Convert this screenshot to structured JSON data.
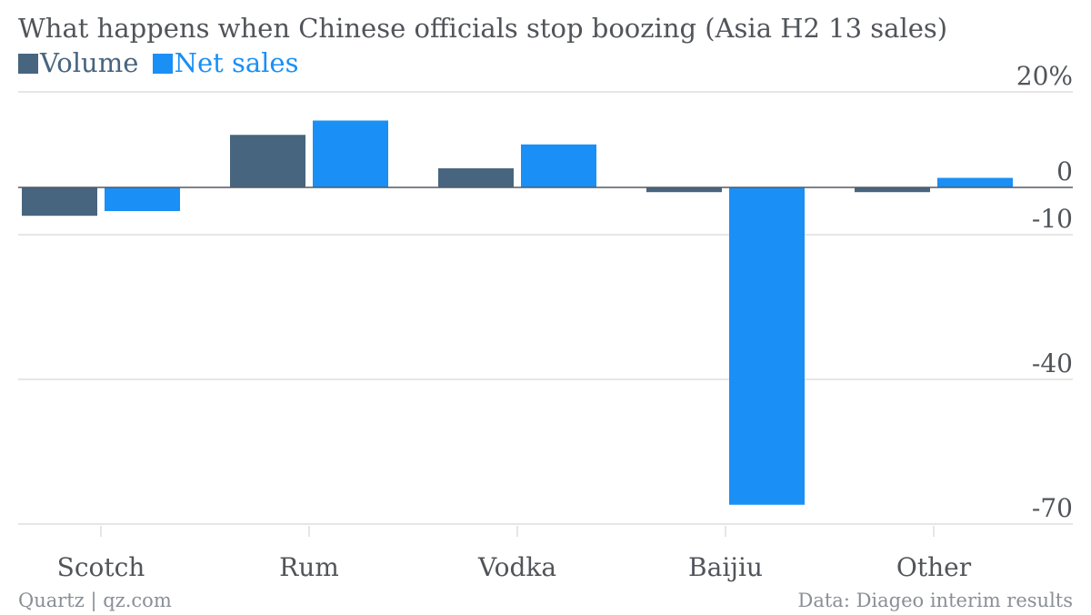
{
  "title": "What happens when Chinese officials stop boozing (Asia H2 13 sales)",
  "legend": [
    {
      "label": "Volume",
      "color": "#47657f"
    },
    {
      "label": "Net sales",
      "color": "#1a8ff5"
    }
  ],
  "footer": {
    "source_left": "Quartz | qz.com",
    "source_right": "Data: Diageo interim results"
  },
  "chart_data": {
    "type": "bar",
    "title": "What happens when Chinese officials stop boozing (Asia H2 13 sales)",
    "categories": [
      "Scotch",
      "Rum",
      "Vodka",
      "Baijiu",
      "Other"
    ],
    "series": [
      {
        "name": "Volume",
        "color": "#47657f",
        "values": [
          -6,
          11,
          4,
          -1,
          -1
        ]
      },
      {
        "name": "Net sales",
        "color": "#1a8ff5",
        "values": [
          -5,
          14,
          9,
          -66,
          2
        ]
      }
    ],
    "y_ticks": [
      {
        "value": 20,
        "label": "20%"
      },
      {
        "value": 0,
        "label": "0"
      },
      {
        "value": -10,
        "label": "-10"
      },
      {
        "value": -40,
        "label": "-40"
      },
      {
        "value": -70,
        "label": "-70"
      }
    ],
    "ylim": [
      -70,
      20
    ],
    "grid": true,
    "legend_position": "top-left",
    "y_axis_side": "right"
  }
}
